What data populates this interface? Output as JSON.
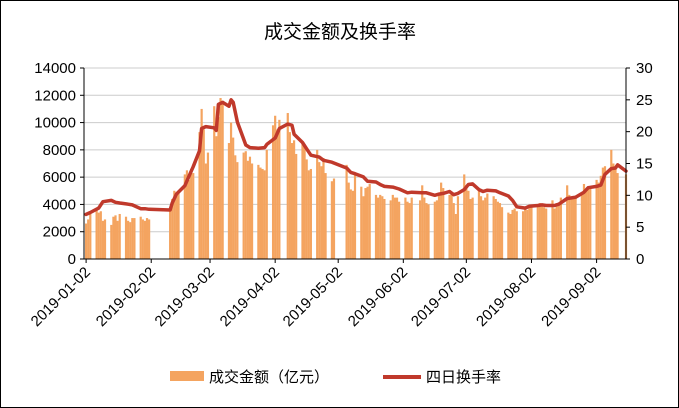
{
  "chart_data": {
    "type": "bar+line",
    "title": "成交金额及换手率",
    "x_ticks": [
      "2019-01-02",
      "2019-02-02",
      "2019-03-02",
      "2019-04-02",
      "2019-05-02",
      "2019-06-02",
      "2019-07-02",
      "2019-08-02",
      "2019-09-02"
    ],
    "y_left": {
      "ticks": [
        "0",
        "2000",
        "4000",
        "6000",
        "8000",
        "10000",
        "12000",
        "14000"
      ],
      "ylim": [
        0,
        14000
      ]
    },
    "y_right": {
      "ticks": [
        "0",
        "5",
        "10",
        "15",
        "20",
        "25",
        "30"
      ],
      "ylim": [
        0,
        30
      ]
    },
    "x_range": [
      "2019-01-01",
      "2019-09-16"
    ],
    "grid": true,
    "legend_position": "bottom",
    "colors": {
      "bar": "#f4a460",
      "line": "#c0392b",
      "grid": "#cccccc",
      "axis": "#000000"
    },
    "series": [
      {
        "name": "成交金额（亿元）",
        "kind": "bar",
        "axis": "left",
        "points": [
          [
            "2019-01-02",
            2600
          ],
          [
            "2019-01-03",
            2900
          ],
          [
            "2019-01-04",
            3300
          ],
          [
            "2019-01-07",
            3700
          ],
          [
            "2019-01-08",
            3400
          ],
          [
            "2019-01-09",
            3500
          ],
          [
            "2019-01-10",
            2800
          ],
          [
            "2019-01-11",
            2900
          ],
          [
            "2019-01-14",
            2500
          ],
          [
            "2019-01-15",
            3100
          ],
          [
            "2019-01-16",
            3200
          ],
          [
            "2019-01-17",
            2800
          ],
          [
            "2019-01-18",
            3300
          ],
          [
            "2019-01-21",
            3100
          ],
          [
            "2019-01-22",
            2800
          ],
          [
            "2019-01-23",
            2700
          ],
          [
            "2019-01-24",
            3000
          ],
          [
            "2019-01-25",
            3000
          ],
          [
            "2019-01-28",
            3100
          ],
          [
            "2019-01-29",
            2900
          ],
          [
            "2019-01-30",
            2800
          ],
          [
            "2019-01-31",
            3000
          ],
          [
            "2019-02-01",
            2900
          ],
          [
            "2019-02-11",
            3500
          ],
          [
            "2019-02-12",
            4400
          ],
          [
            "2019-02-13",
            5000
          ],
          [
            "2019-02-14",
            4600
          ],
          [
            "2019-02-15",
            4800
          ],
          [
            "2019-02-18",
            6200
          ],
          [
            "2019-02-19",
            6500
          ],
          [
            "2019-02-20",
            5800
          ],
          [
            "2019-02-21",
            6600
          ],
          [
            "2019-02-22",
            6300
          ],
          [
            "2019-02-25",
            9300
          ],
          [
            "2019-02-26",
            11000
          ],
          [
            "2019-02-27",
            9500
          ],
          [
            "2019-02-28",
            7000
          ],
          [
            "2019-03-01",
            7800
          ],
          [
            "2019-03-04",
            11200
          ],
          [
            "2019-03-05",
            9000
          ],
          [
            "2019-03-06",
            10400
          ],
          [
            "2019-03-07",
            11800
          ],
          [
            "2019-03-08",
            11600
          ],
          [
            "2019-03-11",
            8500
          ],
          [
            "2019-03-12",
            10000
          ],
          [
            "2019-03-13",
            8900
          ],
          [
            "2019-03-14",
            7600
          ],
          [
            "2019-03-15",
            7100
          ],
          [
            "2019-03-18",
            7800
          ],
          [
            "2019-03-19",
            7900
          ],
          [
            "2019-03-20",
            7200
          ],
          [
            "2019-03-21",
            7500
          ],
          [
            "2019-03-22",
            7000
          ],
          [
            "2019-03-25",
            6900
          ],
          [
            "2019-03-26",
            6700
          ],
          [
            "2019-03-27",
            6600
          ],
          [
            "2019-03-28",
            6500
          ],
          [
            "2019-03-29",
            8000
          ],
          [
            "2019-04-01",
            9800
          ],
          [
            "2019-04-02",
            10500
          ],
          [
            "2019-04-03",
            9500
          ],
          [
            "2019-04-04",
            10200
          ],
          [
            "2019-04-08",
            10700
          ],
          [
            "2019-04-09",
            9300
          ],
          [
            "2019-04-10",
            8500
          ],
          [
            "2019-04-11",
            8700
          ],
          [
            "2019-04-12",
            7700
          ],
          [
            "2019-04-15",
            8600
          ],
          [
            "2019-04-16",
            8300
          ],
          [
            "2019-04-17",
            7300
          ],
          [
            "2019-04-18",
            6500
          ],
          [
            "2019-04-19",
            6600
          ],
          [
            "2019-04-22",
            8000
          ],
          [
            "2019-04-23",
            7100
          ],
          [
            "2019-04-24",
            6800
          ],
          [
            "2019-04-25",
            7400
          ],
          [
            "2019-04-26",
            6300
          ],
          [
            "2019-04-29",
            5700
          ],
          [
            "2019-04-30",
            5900
          ],
          [
            "2019-05-06",
            6900
          ],
          [
            "2019-05-07",
            5600
          ],
          [
            "2019-05-08",
            5100
          ],
          [
            "2019-05-09",
            5000
          ],
          [
            "2019-05-10",
            6200
          ],
          [
            "2019-05-13",
            5300
          ],
          [
            "2019-05-14",
            4600
          ],
          [
            "2019-05-15",
            5200
          ],
          [
            "2019-05-16",
            5300
          ],
          [
            "2019-05-17",
            5500
          ],
          [
            "2019-05-20",
            4700
          ],
          [
            "2019-05-21",
            4500
          ],
          [
            "2019-05-22",
            4700
          ],
          [
            "2019-05-23",
            4600
          ],
          [
            "2019-05-24",
            4400
          ],
          [
            "2019-05-27",
            4300
          ],
          [
            "2019-05-28",
            4700
          ],
          [
            "2019-05-29",
            4500
          ],
          [
            "2019-05-30",
            4500
          ],
          [
            "2019-05-31",
            4200
          ],
          [
            "2019-06-03",
            4500
          ],
          [
            "2019-06-04",
            4200
          ],
          [
            "2019-06-05",
            4100
          ],
          [
            "2019-06-06",
            4500
          ],
          [
            "2019-06-10",
            4300
          ],
          [
            "2019-06-11",
            5400
          ],
          [
            "2019-06-12",
            4500
          ],
          [
            "2019-06-13",
            4100
          ],
          [
            "2019-06-14",
            4000
          ],
          [
            "2019-06-17",
            4200
          ],
          [
            "2019-06-18",
            4300
          ],
          [
            "2019-06-19",
            4800
          ],
          [
            "2019-06-20",
            5600
          ],
          [
            "2019-06-21",
            5200
          ],
          [
            "2019-06-24",
            4700
          ],
          [
            "2019-06-25",
            4900
          ],
          [
            "2019-06-26",
            4100
          ],
          [
            "2019-06-27",
            3300
          ],
          [
            "2019-06-28",
            4600
          ],
          [
            "2019-07-01",
            6200
          ],
          [
            "2019-07-02",
            5400
          ],
          [
            "2019-07-03",
            5000
          ],
          [
            "2019-07-04",
            4400
          ],
          [
            "2019-07-05",
            4500
          ],
          [
            "2019-07-08",
            5100
          ],
          [
            "2019-07-09",
            4600
          ],
          [
            "2019-07-10",
            4300
          ],
          [
            "2019-07-11",
            4500
          ],
          [
            "2019-07-12",
            4800
          ],
          [
            "2019-07-15",
            4600
          ],
          [
            "2019-07-16",
            4400
          ],
          [
            "2019-07-17",
            4200
          ],
          [
            "2019-07-18",
            4100
          ],
          [
            "2019-07-19",
            3800
          ],
          [
            "2019-07-22",
            3400
          ],
          [
            "2019-07-23",
            3300
          ],
          [
            "2019-07-24",
            3600
          ],
          [
            "2019-07-25",
            3700
          ],
          [
            "2019-07-26",
            3500
          ],
          [
            "2019-07-29",
            3500
          ],
          [
            "2019-07-30",
            3700
          ],
          [
            "2019-07-31",
            3600
          ],
          [
            "2019-08-01",
            3800
          ],
          [
            "2019-08-02",
            3900
          ],
          [
            "2019-08-05",
            3900
          ],
          [
            "2019-08-06",
            4100
          ],
          [
            "2019-08-07",
            3900
          ],
          [
            "2019-08-08",
            3800
          ],
          [
            "2019-08-09",
            3700
          ],
          [
            "2019-08-12",
            4300
          ],
          [
            "2019-08-13",
            3700
          ],
          [
            "2019-08-14",
            4100
          ],
          [
            "2019-08-15",
            4000
          ],
          [
            "2019-08-16",
            4500
          ],
          [
            "2019-08-19",
            5400
          ],
          [
            "2019-08-20",
            4700
          ],
          [
            "2019-08-21",
            4400
          ],
          [
            "2019-08-22",
            4500
          ],
          [
            "2019-08-23",
            4600
          ],
          [
            "2019-08-26",
            4700
          ],
          [
            "2019-08-27",
            5500
          ],
          [
            "2019-08-28",
            5100
          ],
          [
            "2019-08-29",
            5200
          ],
          [
            "2019-08-30",
            5300
          ],
          [
            "2019-09-02",
            5800
          ],
          [
            "2019-09-03",
            5600
          ],
          [
            "2019-09-04",
            6100
          ],
          [
            "2019-09-05",
            6700
          ],
          [
            "2019-09-06",
            6800
          ],
          [
            "2019-09-09",
            8000
          ],
          [
            "2019-09-10",
            7000
          ],
          [
            "2019-09-11",
            6600
          ],
          [
            "2019-09-12",
            6300
          ],
          [
            "2019-09-16",
            6200
          ]
        ]
      },
      {
        "name": "四日换手率",
        "kind": "line",
        "axis": "right",
        "points": [
          [
            "2019-01-02",
            7.0
          ],
          [
            "2019-01-04",
            7.3
          ],
          [
            "2019-01-08",
            8.0
          ],
          [
            "2019-01-10",
            9.0
          ],
          [
            "2019-01-14",
            9.2
          ],
          [
            "2019-01-16",
            8.9
          ],
          [
            "2019-01-18",
            8.8
          ],
          [
            "2019-01-22",
            8.6
          ],
          [
            "2019-01-24",
            8.5
          ],
          [
            "2019-01-28",
            7.9
          ],
          [
            "2019-01-30",
            7.9
          ],
          [
            "2019-02-01",
            7.8
          ],
          [
            "2019-02-11",
            7.7
          ],
          [
            "2019-02-12",
            8.8
          ],
          [
            "2019-02-14",
            10.2
          ],
          [
            "2019-02-18",
            11.5
          ],
          [
            "2019-02-20",
            13.0
          ],
          [
            "2019-02-22",
            14.5
          ],
          [
            "2019-02-25",
            17.0
          ],
          [
            "2019-02-26",
            20.5
          ],
          [
            "2019-02-28",
            20.8
          ],
          [
            "2019-03-04",
            20.6
          ],
          [
            "2019-03-05",
            20.2
          ],
          [
            "2019-03-06",
            24.3
          ],
          [
            "2019-03-08",
            24.6
          ],
          [
            "2019-03-11",
            24.0
          ],
          [
            "2019-03-12",
            25.0
          ],
          [
            "2019-03-13",
            24.6
          ],
          [
            "2019-03-15",
            21.5
          ],
          [
            "2019-03-19",
            17.9
          ],
          [
            "2019-03-21",
            17.5
          ],
          [
            "2019-03-25",
            17.4
          ],
          [
            "2019-03-28",
            17.5
          ],
          [
            "2019-03-29",
            18.0
          ],
          [
            "2019-04-02",
            19.0
          ],
          [
            "2019-04-04",
            20.5
          ],
          [
            "2019-04-08",
            21.2
          ],
          [
            "2019-04-10",
            21.0
          ],
          [
            "2019-04-11",
            19.6
          ],
          [
            "2019-04-15",
            18.3
          ],
          [
            "2019-04-17",
            17.3
          ],
          [
            "2019-04-19",
            16.3
          ],
          [
            "2019-04-23",
            16.0
          ],
          [
            "2019-04-25",
            15.5
          ],
          [
            "2019-04-29",
            15.2
          ],
          [
            "2019-05-06",
            14.3
          ],
          [
            "2019-05-08",
            13.6
          ],
          [
            "2019-05-10",
            13.4
          ],
          [
            "2019-05-14",
            12.9
          ],
          [
            "2019-05-16",
            12.2
          ],
          [
            "2019-05-20",
            12.1
          ],
          [
            "2019-05-22",
            11.7
          ],
          [
            "2019-05-24",
            11.4
          ],
          [
            "2019-05-28",
            11.3
          ],
          [
            "2019-05-31",
            11.0
          ],
          [
            "2019-06-04",
            10.4
          ],
          [
            "2019-06-06",
            10.5
          ],
          [
            "2019-06-11",
            10.4
          ],
          [
            "2019-06-13",
            10.4
          ],
          [
            "2019-06-17",
            10.0
          ],
          [
            "2019-06-19",
            10.2
          ],
          [
            "2019-06-21",
            10.3
          ],
          [
            "2019-06-24",
            10.6
          ],
          [
            "2019-06-26",
            10.1
          ],
          [
            "2019-06-28",
            10.3
          ],
          [
            "2019-07-01",
            10.9
          ],
          [
            "2019-07-03",
            11.7
          ],
          [
            "2019-07-05",
            11.8
          ],
          [
            "2019-07-08",
            10.9
          ],
          [
            "2019-07-10",
            10.6
          ],
          [
            "2019-07-12",
            10.8
          ],
          [
            "2019-07-16",
            10.7
          ],
          [
            "2019-07-18",
            10.4
          ],
          [
            "2019-07-22",
            9.9
          ],
          [
            "2019-07-24",
            9.2
          ],
          [
            "2019-07-26",
            8.2
          ],
          [
            "2019-07-30",
            8.0
          ],
          [
            "2019-08-01",
            8.3
          ],
          [
            "2019-08-05",
            8.4
          ],
          [
            "2019-08-07",
            8.5
          ],
          [
            "2019-08-09",
            8.4
          ],
          [
            "2019-08-13",
            8.4
          ],
          [
            "2019-08-15",
            8.6
          ],
          [
            "2019-08-19",
            9.5
          ],
          [
            "2019-08-21",
            9.6
          ],
          [
            "2019-08-23",
            9.7
          ],
          [
            "2019-08-27",
            10.5
          ],
          [
            "2019-08-29",
            11.2
          ],
          [
            "2019-09-02",
            11.4
          ],
          [
            "2019-09-04",
            11.6
          ],
          [
            "2019-09-06",
            13.3
          ],
          [
            "2019-09-09",
            14.2
          ],
          [
            "2019-09-11",
            14.3
          ],
          [
            "2019-09-12",
            14.8
          ],
          [
            "2019-09-16",
            13.8
          ]
        ]
      }
    ]
  }
}
